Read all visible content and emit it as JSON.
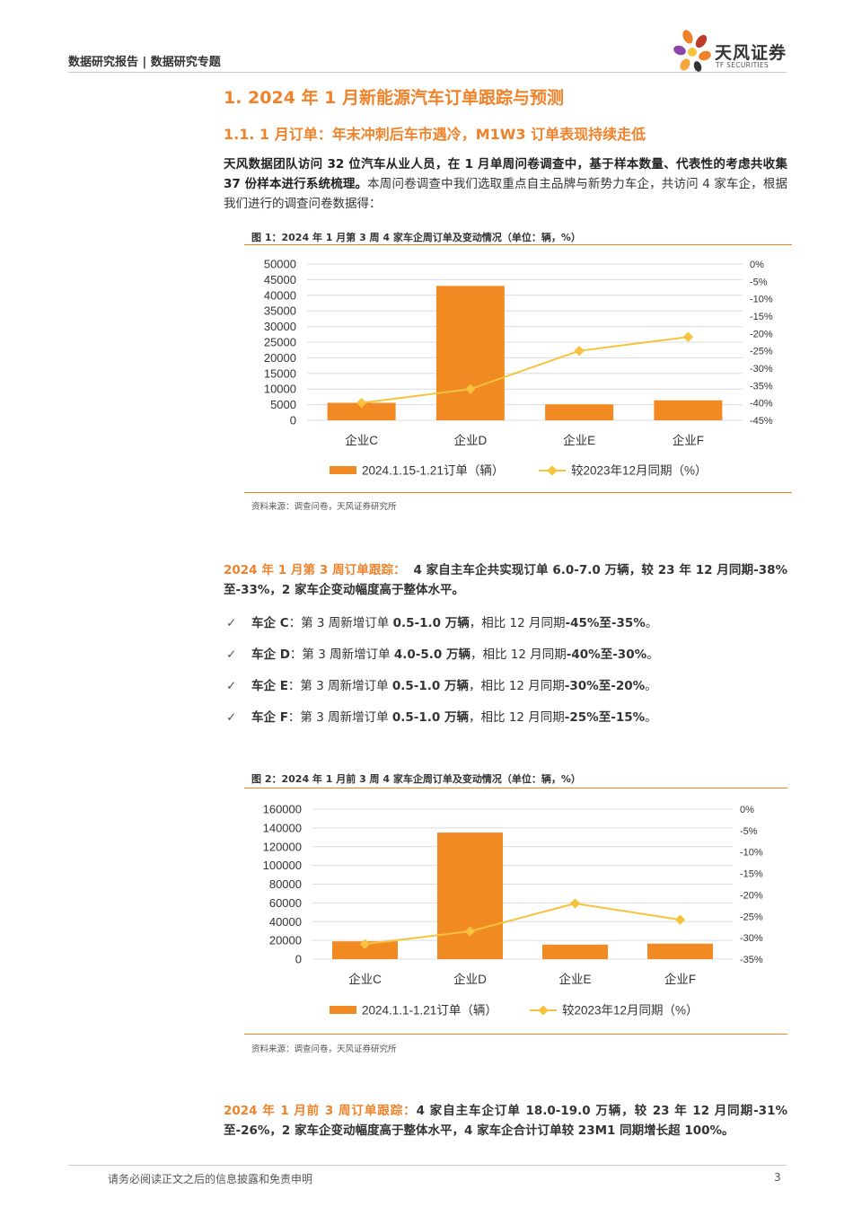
{
  "header": {
    "left": "数据研究报告 | 数据研究专题",
    "logo_cn": "天风证券",
    "logo_en": "TF SECURITIES"
  },
  "section_title": "1. 2024 年 1 月新能源汽车订单跟踪与预测",
  "subsection_title": "1.1. 1 月订单：年末冲刺后车市遇冷，M1W3 订单表现持续走低",
  "intro": {
    "bold": "天风数据团队访问 32 位汽车从业人员，在 1 月单周问卷调查中，基于样本数量、代表性的考虑共收集 37 份样本进行系统梳理。",
    "rest": "本周问卷调查中我们选取重点自主品牌与新势力车企，共访问 4 家车企，根据我们进行的调查问卷数据得："
  },
  "figure1": {
    "title": "图 1：2024 年 1 月第 3 周 4 家车企周订单及变动情况（单位：辆，%）",
    "source": "资料来源：调查问卷，天风证券研究所"
  },
  "figure2": {
    "title": "图 2：2024 年 1 月前 3 周 4 家车企周订单及变动情况（单位：辆，%）",
    "source": "资料来源：调查问卷，天风证券研究所"
  },
  "para1": {
    "lead": "2024 年 1 月第 3 周订单跟踪：",
    "text": "4 家自主车企共实现订单 6.0-7.0 万辆，较 23 年 12 月同期-38%至-33%，2 家车企变动幅度高于整体水平。"
  },
  "bullets": [
    {
      "check": "✓",
      "name": "车企 C",
      "sep": "：",
      "pre": "第 3 周新增订单 ",
      "orders": "0.5-1.0 万辆",
      "mid": "，相比 12 月同期",
      "chg": "-45%至-35%",
      "end": "。"
    },
    {
      "check": "✓",
      "name": "车企 D",
      "sep": "：",
      "pre": "第 3 周新增订单 ",
      "orders": "4.0-5.0 万辆",
      "mid": "，相比 12 月同期",
      "chg": "-40%至-30%",
      "end": "。"
    },
    {
      "check": "✓",
      "name": "车企 E",
      "sep": "：",
      "pre": "第 3 周新增订单 ",
      "orders": "0.5-1.0 万辆",
      "mid": "，相比 12 月同期",
      "chg": "-30%至-20%",
      "end": "。"
    },
    {
      "check": "✓",
      "name": "车企 F",
      "sep": "：",
      "pre": "第 3 周新增订单 ",
      "orders": "0.5-1.0 万辆",
      "mid": "，相比 12 月同期",
      "chg": "-25%至-15%",
      "end": "。"
    }
  ],
  "para2": {
    "lead": "2024 年 1 月前 3 周订单跟踪：",
    "text": "4 家自主车企订单 18.0-19.0 万辆，较 23 年 12 月同期-31%至-26%，2 家车企变动幅度高于整体水平，4 家车企合计订单较 23M1 同期增长超 100%。"
  },
  "footer": {
    "disclaimer": "请务必阅读正文之后的信息披露和免责申明",
    "page": "3"
  },
  "colors": {
    "accent": "#f0822a",
    "bar": "#f28a24",
    "line": "#f7c23c"
  },
  "chart_data": [
    {
      "type": "bar",
      "categories": [
        "企业C",
        "企业D",
        "企业E",
        "企业F"
      ],
      "series": [
        {
          "name": "2024.1.15-1.21订单（辆）",
          "type": "bar",
          "axis": "left",
          "values": [
            5600,
            43000,
            5100,
            6400
          ]
        },
        {
          "name": "较2023年12月同期（%）",
          "type": "line",
          "axis": "right",
          "values": [
            -40,
            -36,
            -25,
            -21
          ]
        }
      ],
      "ylim": [
        0,
        50000
      ],
      "yticks": [
        "50000",
        "45000",
        "40000",
        "35000",
        "30000",
        "25000",
        "20000",
        "15000",
        "10000",
        "5000",
        "0"
      ],
      "y2lim": [
        -45,
        0
      ],
      "y2ticks": [
        "0%",
        "-5%",
        "-10%",
        "-15%",
        "-20%",
        "-25%",
        "-30%",
        "-35%",
        "-40%",
        "-45%"
      ],
      "grid": true,
      "legend": "bottom"
    },
    {
      "type": "bar",
      "categories": [
        "企业C",
        "企业D",
        "企业E",
        "企业F"
      ],
      "series": [
        {
          "name": "2024.1.1-1.21订单（辆）",
          "type": "bar",
          "axis": "left",
          "values": [
            19000,
            135000,
            15500,
            16500
          ]
        },
        {
          "name": "较2023年12月同期（%）",
          "type": "line",
          "axis": "right",
          "values": [
            -31.5,
            -28.5,
            -22,
            -25.8
          ]
        }
      ],
      "ylim": [
        0,
        160000
      ],
      "yticks": [
        "160000",
        "140000",
        "120000",
        "100000",
        "80000",
        "60000",
        "40000",
        "20000",
        "0"
      ],
      "y2lim": [
        -35,
        0
      ],
      "y2ticks": [
        "0%",
        "-5%",
        "-10%",
        "-15%",
        "-20%",
        "-25%",
        "-30%",
        "-35%"
      ],
      "grid": true,
      "legend": "bottom"
    }
  ]
}
